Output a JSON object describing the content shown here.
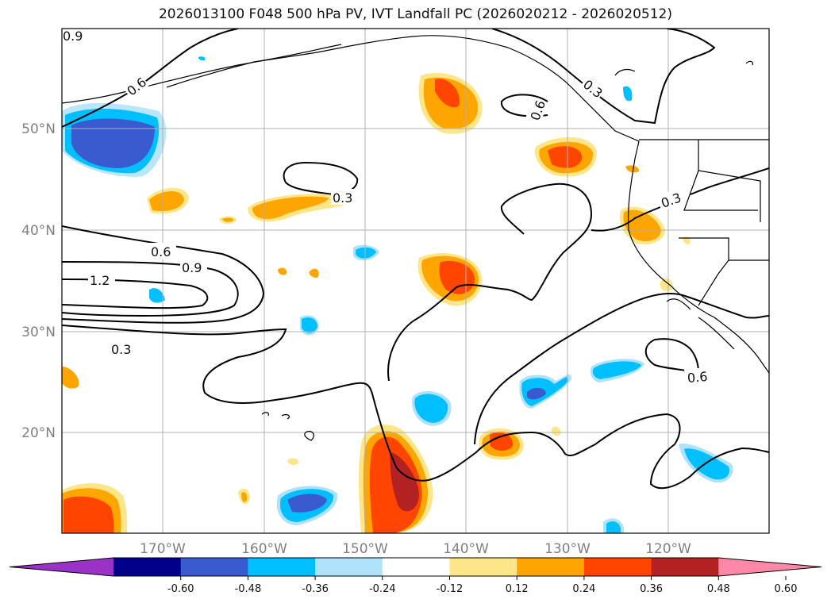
{
  "title": "2026013100 F048 500 hPa PV, IVT Landfall PC (2026020212 - 2026020512)",
  "map": {
    "lat_labels": [
      "50°N",
      "40°N",
      "30°N",
      "20°N"
    ],
    "lon_labels": [
      "170°W",
      "160°W",
      "150°W",
      "140°W",
      "130°W",
      "120°W"
    ],
    "contour_labels": [
      "0.9",
      "0.6",
      "0.3",
      "0.6",
      "0.3",
      "0.3",
      "0.6",
      "0.9",
      "1.2",
      "0.3",
      "0.6"
    ]
  },
  "colorbar": {
    "ticks": [
      "-0.60",
      "-0.48",
      "-0.36",
      "-0.24",
      "-0.12",
      "0.12",
      "0.24",
      "0.36",
      "0.48",
      "0.60"
    ],
    "colors": [
      "#9b32c8",
      "#00008b",
      "#3a5bd0",
      "#00bfff",
      "#aee2fb",
      "#ffffff",
      "#fde68a",
      "#ffa500",
      "#ff4500",
      "#b22222",
      "#ff88a8"
    ]
  }
}
